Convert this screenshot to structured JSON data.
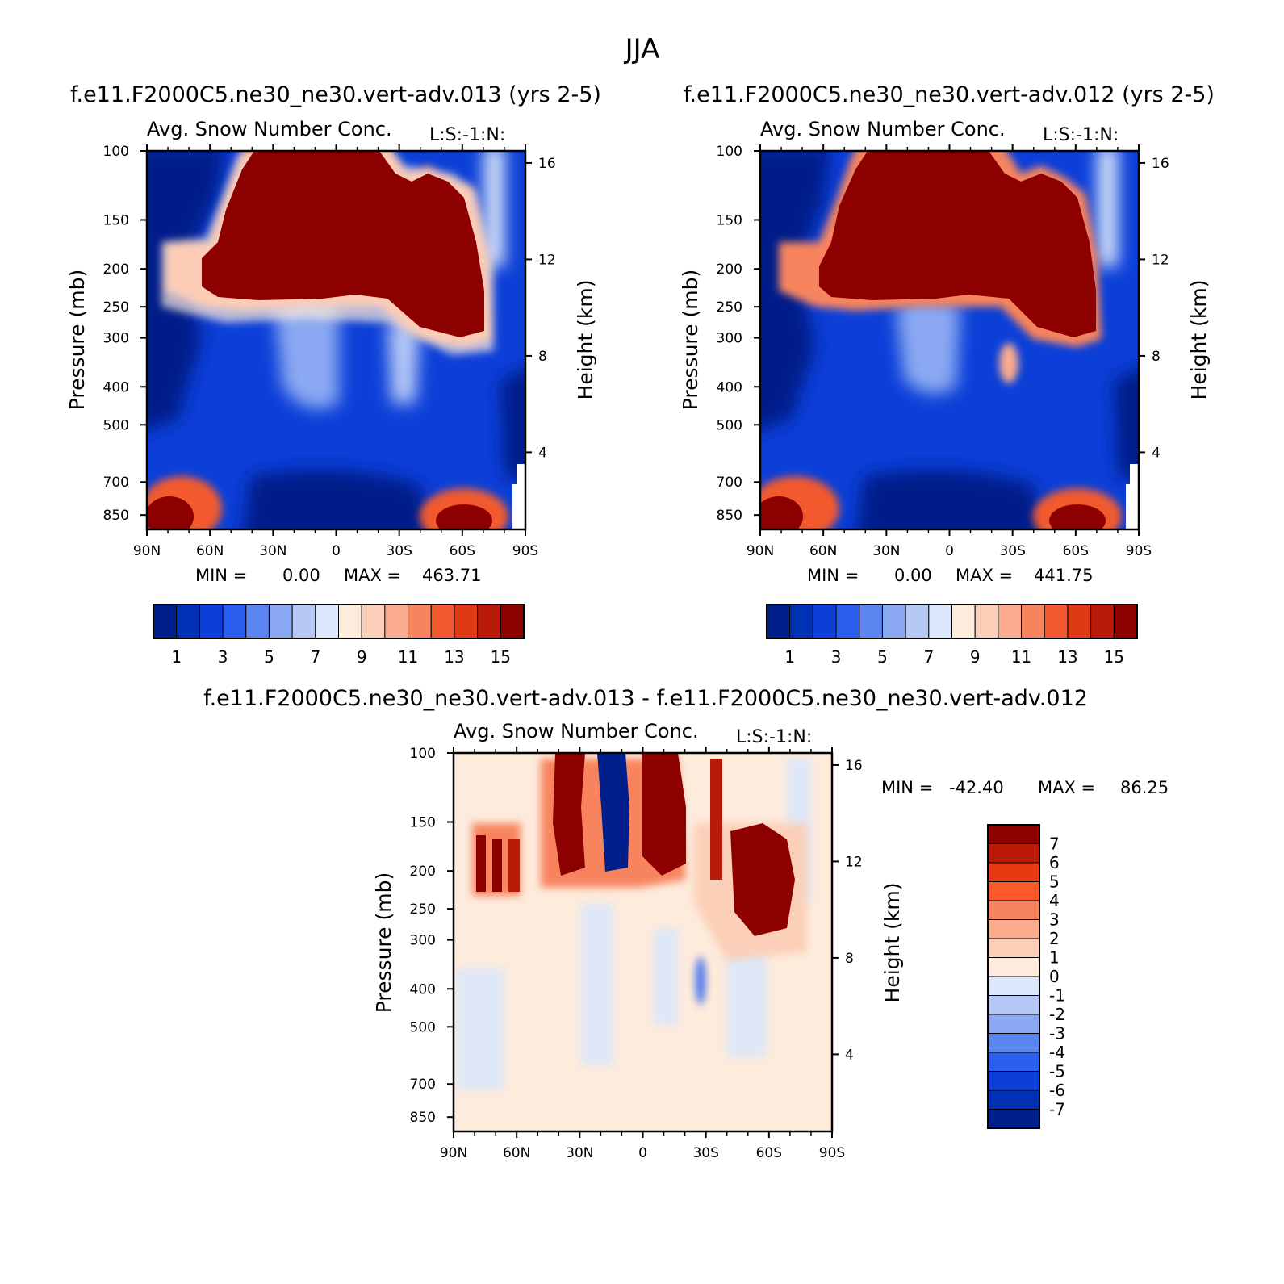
{
  "page_title": "JJA",
  "chart_data": [
    {
      "type": "heatmap",
      "id": "p1",
      "title": "f.e11.F2000C5.ne30_ne30.vert-adv.013 (yrs 2-5)",
      "subtitle": "Avg. Snow Number Conc.",
      "units_label": "L:S:-1:N:",
      "ylabel": "Pressure (mb)",
      "ylabel_right": "Height (km)",
      "x_ticks": [
        "90N",
        "60N",
        "30N",
        "0",
        "30S",
        "60S",
        "90S"
      ],
      "y_ticks": [
        100,
        150,
        200,
        250,
        300,
        400,
        500,
        700,
        850
      ],
      "y_ticks_right": [
        16,
        12,
        8,
        4
      ],
      "min_label": "MIN =",
      "min_value": "0.00",
      "max_label": "MAX =",
      "max_value": "463.71",
      "colorbar_labels": [
        "1",
        "3",
        "5",
        "7",
        "9",
        "11",
        "13",
        "15"
      ]
    },
    {
      "type": "heatmap",
      "id": "p2",
      "title": "f.e11.F2000C5.ne30_ne30.vert-adv.012 (yrs 2-5)",
      "subtitle": "Avg. Snow Number Conc.",
      "units_label": "L:S:-1:N:",
      "ylabel": "Pressure (mb)",
      "ylabel_right": "Height (km)",
      "x_ticks": [
        "90N",
        "60N",
        "30N",
        "0",
        "30S",
        "60S",
        "90S"
      ],
      "y_ticks": [
        100,
        150,
        200,
        250,
        300,
        400,
        500,
        700,
        850
      ],
      "y_ticks_right": [
        16,
        12,
        8,
        4
      ],
      "min_label": "MIN =",
      "min_value": "0.00",
      "max_label": "MAX =",
      "max_value": "441.75",
      "colorbar_labels": [
        "1",
        "3",
        "5",
        "7",
        "9",
        "11",
        "13",
        "15"
      ]
    },
    {
      "type": "heatmap",
      "id": "p3",
      "title": "f.e11.F2000C5.ne30_ne30.vert-adv.013 - f.e11.F2000C5.ne30_ne30.vert-adv.012",
      "subtitle": "Avg. Snow Number Conc.",
      "units_label": "L:S:-1:N:",
      "ylabel": "Pressure (mb)",
      "ylabel_right": "Height (km)",
      "x_ticks": [
        "90N",
        "60N",
        "30N",
        "0",
        "30S",
        "60S",
        "90S"
      ],
      "y_ticks": [
        100,
        150,
        200,
        250,
        300,
        400,
        500,
        700,
        850
      ],
      "y_ticks_right": [
        16,
        12,
        8,
        4
      ],
      "min_label": "MIN =",
      "min_value": "-42.40",
      "max_label": "MAX =",
      "max_value": "86.25",
      "colorbar_labels": [
        "7",
        "6",
        "5",
        "4",
        "3",
        "2",
        "1",
        "0",
        "-1",
        "-2",
        "-3",
        "-4",
        "-5",
        "-6",
        "-7"
      ]
    }
  ],
  "colors": {
    "seq_scale": [
      "#001f8a",
      "#0030b4",
      "#0b3fd8",
      "#2a5ff0",
      "#5b86f0",
      "#8aa9f2",
      "#b5c8f6",
      "#dbe7fa",
      "#fdebdc",
      "#fcd0b8",
      "#fbac8e",
      "#f7845f",
      "#f25a2f",
      "#df3a14",
      "#b81c08",
      "#8c0000"
    ],
    "diff_scale": [
      "#8c0000",
      "#b81c08",
      "#e83a12",
      "#fa5a28",
      "#f7845f",
      "#fbac8e",
      "#fcd0b8",
      "#fdebdc",
      "#dbe7fa",
      "#b5c8f6",
      "#8aa9f2",
      "#5b86f0",
      "#2a5ff0",
      "#0b3fd8",
      "#0030b4",
      "#001f8a"
    ]
  }
}
